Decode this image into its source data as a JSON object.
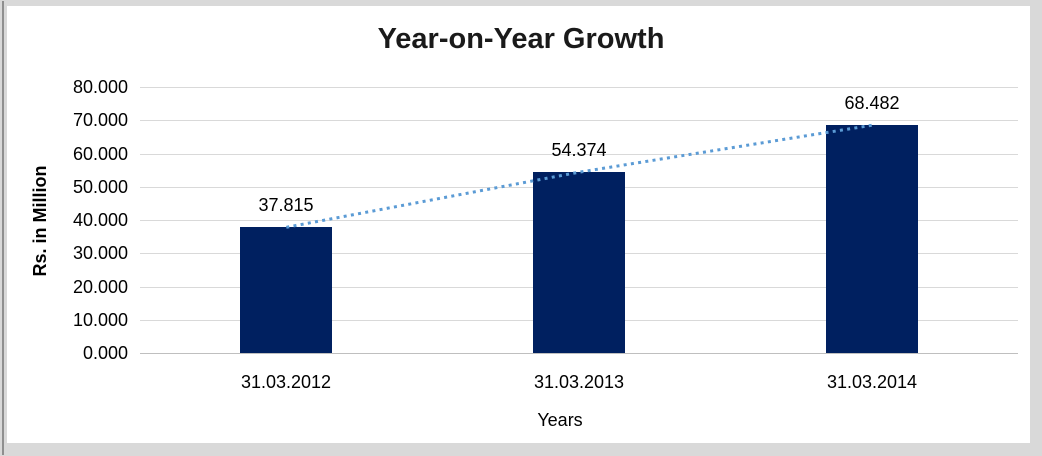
{
  "chart_data": {
    "type": "bar",
    "title": "Year-on-Year Growth",
    "xlabel": "Years",
    "ylabel": "Rs. in Million",
    "categories": [
      "31.03.2012",
      "31.03.2013",
      "31.03.2014"
    ],
    "values": [
      37.815,
      54.374,
      68.482
    ],
    "value_labels": [
      "37.815",
      "54.374",
      "68.482"
    ],
    "ylim": [
      0,
      80
    ],
    "yticks": [
      {
        "label": "0.000",
        "value": 0
      },
      {
        "label": "10.000",
        "value": 10
      },
      {
        "label": "20.000",
        "value": 20
      },
      {
        "label": "30.000",
        "value": 30
      },
      {
        "label": "40.000",
        "value": 40
      },
      {
        "label": "50.000",
        "value": 50
      },
      {
        "label": "60.000",
        "value": 60
      },
      {
        "label": "70.000",
        "value": 70
      },
      {
        "label": "80.000",
        "value": 80
      }
    ],
    "grid": true,
    "legend": false,
    "trendline": {
      "style": "dotted",
      "connects": "bar tops"
    },
    "colors": {
      "bar": "#002060",
      "trendline": "#5b9bd5",
      "gridline": "#d9d9d9",
      "baseline": "#bfbfbf",
      "text": "#000000",
      "frame": "#d9d9d9",
      "plot_background": "#ffffff"
    }
  }
}
